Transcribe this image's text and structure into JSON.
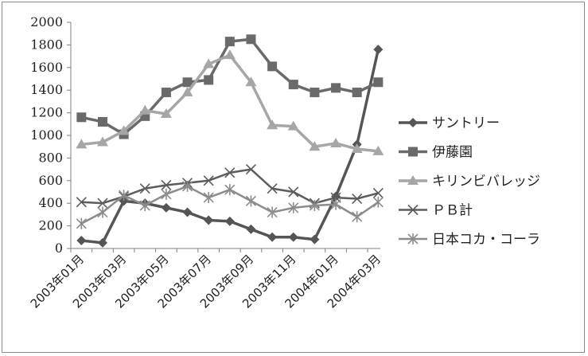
{
  "chart_data": {
    "type": "line",
    "title": "",
    "xlabel": "",
    "ylabel": "",
    "ylim": [
      0,
      2000
    ],
    "yticks": [
      0,
      200,
      400,
      600,
      800,
      1000,
      1200,
      1400,
      1600,
      1800,
      2000
    ],
    "x": [
      "2003年01月",
      "2003年02月",
      "2003年03月",
      "2003年04月",
      "2003年05月",
      "2003年06月",
      "2003年07月",
      "2003年08月",
      "2003年09月",
      "2003年10月",
      "2003年11月",
      "2003年12月",
      "2004年01月",
      "2004年02月",
      "2004年03月"
    ],
    "xtick_labels": [
      "2003年01月",
      "2003年03月",
      "2003年05月",
      "2003年07月",
      "2003年09月",
      "2003年11月",
      "2004年01月",
      "2004年03月"
    ],
    "grid": "none",
    "legend_position": "right",
    "series": [
      {
        "name": "サントリー",
        "marker": "diamond",
        "color": "#555555",
        "values": [
          70,
          50,
          420,
          400,
          360,
          320,
          250,
          240,
          170,
          100,
          100,
          80,
          460,
          920,
          1760
        ]
      },
      {
        "name": "伊藤園",
        "marker": "square",
        "color": "#6a6a6a",
        "values": [
          1160,
          1120,
          1010,
          1170,
          1380,
          1470,
          1490,
          1830,
          1850,
          1610,
          1450,
          1380,
          1420,
          1380,
          1470
        ]
      },
      {
        "name": "キリンビバレッジ",
        "marker": "triangle",
        "color": "#a6a6a6",
        "values": [
          920,
          940,
          1040,
          1220,
          1190,
          1380,
          1630,
          1710,
          1470,
          1090,
          1080,
          900,
          930,
          880,
          860
        ]
      },
      {
        "name": "ＰＢ計",
        "marker": "x",
        "color": "#5c5c5c",
        "values": [
          410,
          400,
          460,
          530,
          560,
          580,
          600,
          670,
          700,
          530,
          500,
          400,
          450,
          440,
          490
        ]
      },
      {
        "name": "日本コカ・コーラ",
        "marker": "star",
        "color": "#8c8c8c",
        "values": [
          220,
          320,
          470,
          380,
          480,
          550,
          450,
          520,
          420,
          320,
          360,
          380,
          390,
          280,
          410
        ]
      }
    ]
  }
}
